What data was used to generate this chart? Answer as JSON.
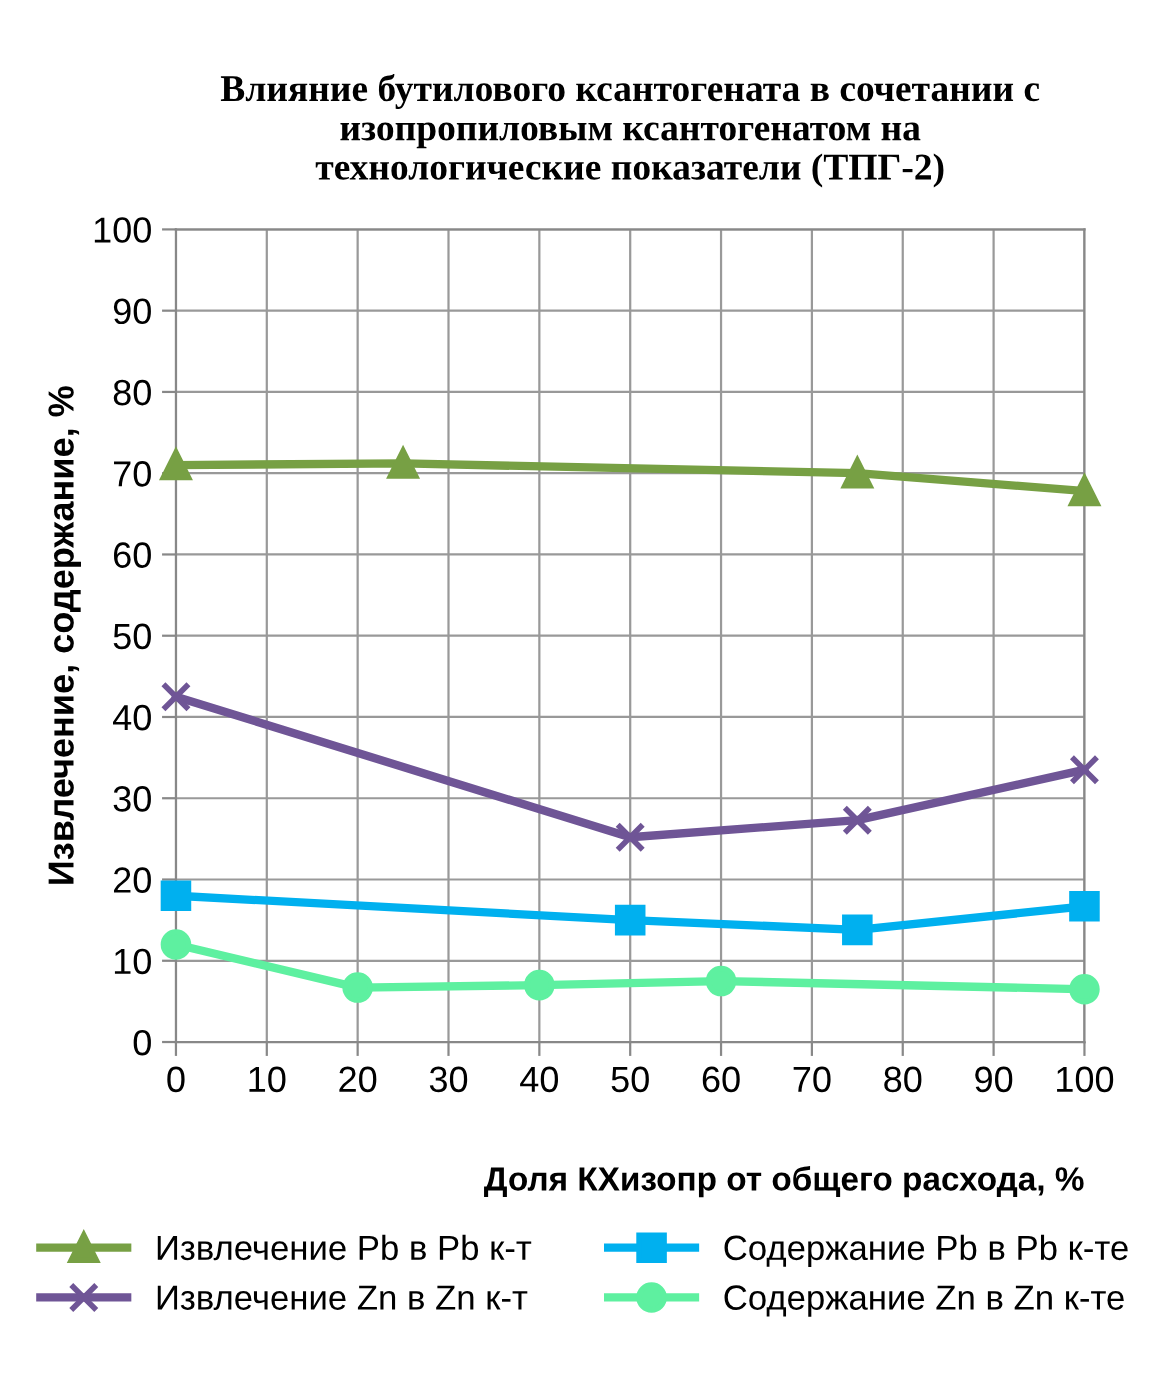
{
  "chart_data": {
    "type": "line",
    "title": "Влияние бутилового ксантогената в сочетании с\nизопропиловым ксантогенатом на\nтехнологические показатели (ТПГ-2)",
    "xlabel": "Доля КХизопр от общего расхода, %",
    "ylabel": "Извлечение, содержание, %",
    "xlim": [
      0,
      100
    ],
    "xticks": [
      0,
      10,
      20,
      30,
      40,
      50,
      60,
      70,
      80,
      90,
      100
    ],
    "ylim": [
      0,
      100
    ],
    "yticks": [
      0,
      10,
      20,
      30,
      40,
      50,
      60,
      70,
      80,
      90,
      100
    ],
    "grid": true,
    "legend": "bottom",
    "series": [
      {
        "name": "Извлечение Pb в Pb к-т",
        "color": "#77a044",
        "marker": "triangle",
        "x": [
          0,
          25,
          75,
          100
        ],
        "values": [
          71,
          71.2,
          70,
          67.8
        ]
      },
      {
        "name": "Извлечение Zn в Zn к-т",
        "color": "#6f5596",
        "marker": "cross",
        "x": [
          0,
          50,
          75,
          100
        ],
        "values": [
          42.5,
          25.2,
          27.3,
          33.5
        ]
      },
      {
        "name": "Содержание Pb в Pb к-те",
        "color": "#00b0ef",
        "marker": "square",
        "x": [
          0,
          50,
          75,
          100
        ],
        "values": [
          18,
          15,
          13.8,
          16.7
        ]
      },
      {
        "name": "Содержание Zn в Zn к-те",
        "color": "#5ef0a0",
        "marker": "circle",
        "x": [
          0,
          20,
          40,
          60,
          100
        ],
        "values": [
          12,
          6.7,
          7,
          7.5,
          6.5
        ]
      }
    ]
  }
}
